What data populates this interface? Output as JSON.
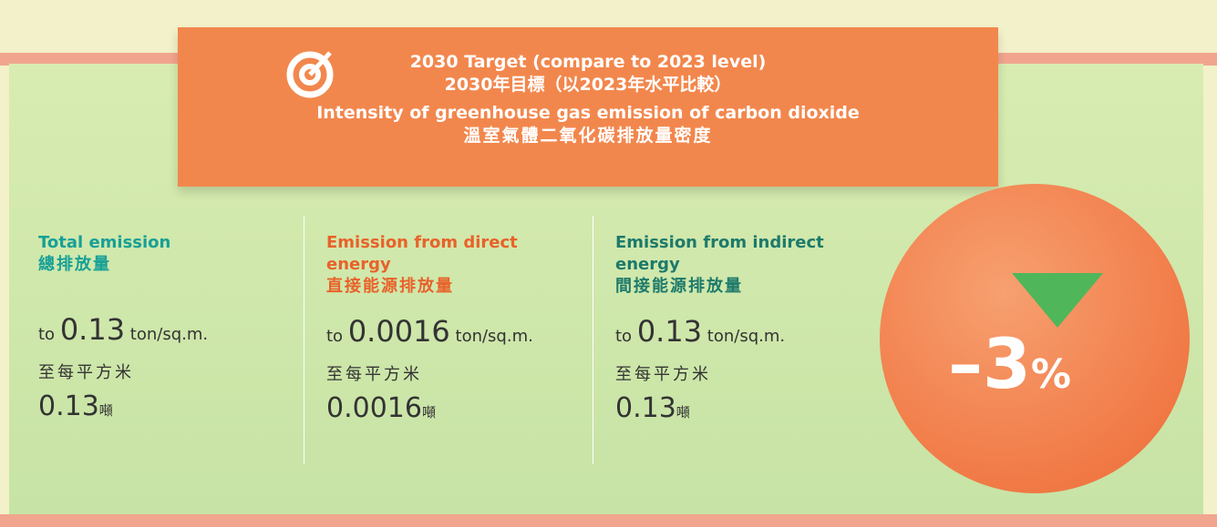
{
  "header": {
    "title_en": "2030 Target (compare to 2023 level)",
    "title_zh": "2030年目標（以2023年水平比較）",
    "subtitle_en": "Intensity of greenhouse gas emission of carbon dioxide",
    "subtitle_zh": "溫室氣體二氧化碳排放量密度"
  },
  "columns": [
    {
      "title_en": "Total emission",
      "title_zh": "總排放量",
      "prefix": "to",
      "value": "0.13",
      "unit": "ton/sq.m.",
      "unit_zh": "至每平方米",
      "value_zh": "0.13",
      "suffix_zh": "噸"
    },
    {
      "title_en": "Emission from direct energy",
      "title_zh": "直接能源排放量",
      "prefix": "to",
      "value": "0.0016",
      "unit": "ton/sq.m.",
      "unit_zh": "至每平方米",
      "value_zh": "0.0016",
      "suffix_zh": "噸"
    },
    {
      "title_en": "Emission from indirect energy",
      "title_zh": "間接能源排放量",
      "prefix": "to",
      "value": "0.13",
      "unit": "ton/sq.m.",
      "unit_zh": "至每平方米",
      "value_zh": "0.13",
      "suffix_zh": "噸"
    }
  ],
  "badge": {
    "value": "–3",
    "unit": "%"
  }
}
